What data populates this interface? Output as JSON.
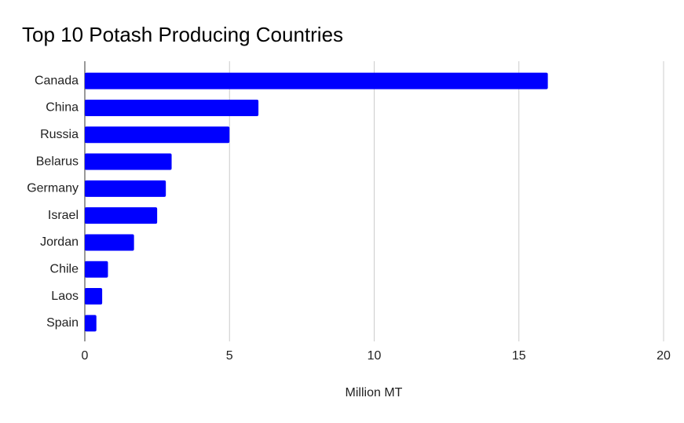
{
  "chart_data": {
    "type": "bar",
    "orientation": "horizontal",
    "title": "Top 10 Potash Producing Countries",
    "x_label": "Million MT",
    "categories": [
      "Canada",
      "China",
      "Russia",
      "Belarus",
      "Germany",
      "Israel",
      "Jordan",
      "Chile",
      "Laos",
      "Spain"
    ],
    "values": [
      16,
      6,
      5,
      3,
      2.8,
      2.5,
      1.7,
      0.8,
      0.6,
      0.4
    ],
    "color": "#0000ff",
    "xlim": [
      0,
      20
    ],
    "xticks": [
      0,
      5,
      10,
      15,
      20
    ],
    "grid": true
  }
}
